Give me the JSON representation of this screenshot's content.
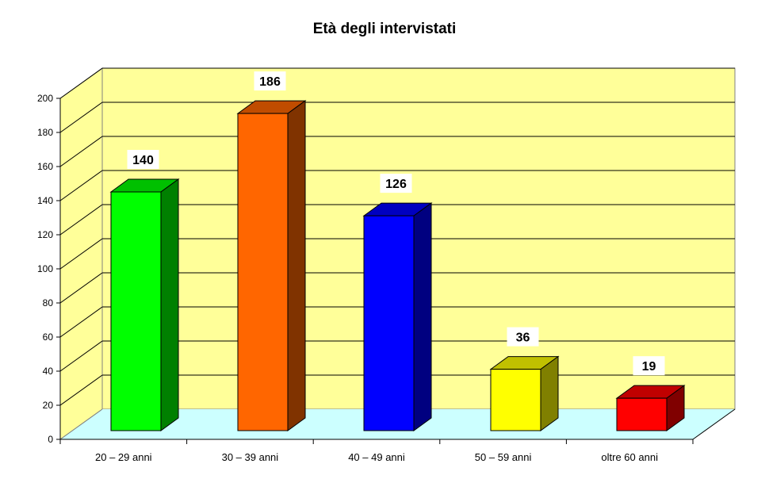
{
  "chart_data": {
    "type": "bar",
    "title": "Età degli intervistati",
    "categories": [
      "20 – 29 anni",
      "30 – 39 anni",
      "40 – 49 anni",
      "50 – 59 anni",
      "oltre 60 anni"
    ],
    "values": [
      140,
      186,
      126,
      36,
      19
    ],
    "xlabel": "",
    "ylabel": "",
    "ylim": [
      0,
      200
    ],
    "yticks": [
      0,
      20,
      40,
      60,
      80,
      100,
      120,
      140,
      160,
      180,
      200
    ],
    "grid": true,
    "legend": "none",
    "style": "3d-column",
    "bar_colors": [
      {
        "front": "#00ff00",
        "top": "#00c000",
        "side": "#008000"
      },
      {
        "front": "#ff6600",
        "top": "#c04c00",
        "side": "#803300"
      },
      {
        "front": "#0000ff",
        "top": "#0000c0",
        "side": "#000080"
      },
      {
        "front": "#ffff00",
        "top": "#c0c000",
        "side": "#808000"
      },
      {
        "front": "#ff0000",
        "top": "#c00000",
        "side": "#800000"
      }
    ],
    "wall_color": "#ffff99",
    "floor_color": "#ccffff"
  }
}
